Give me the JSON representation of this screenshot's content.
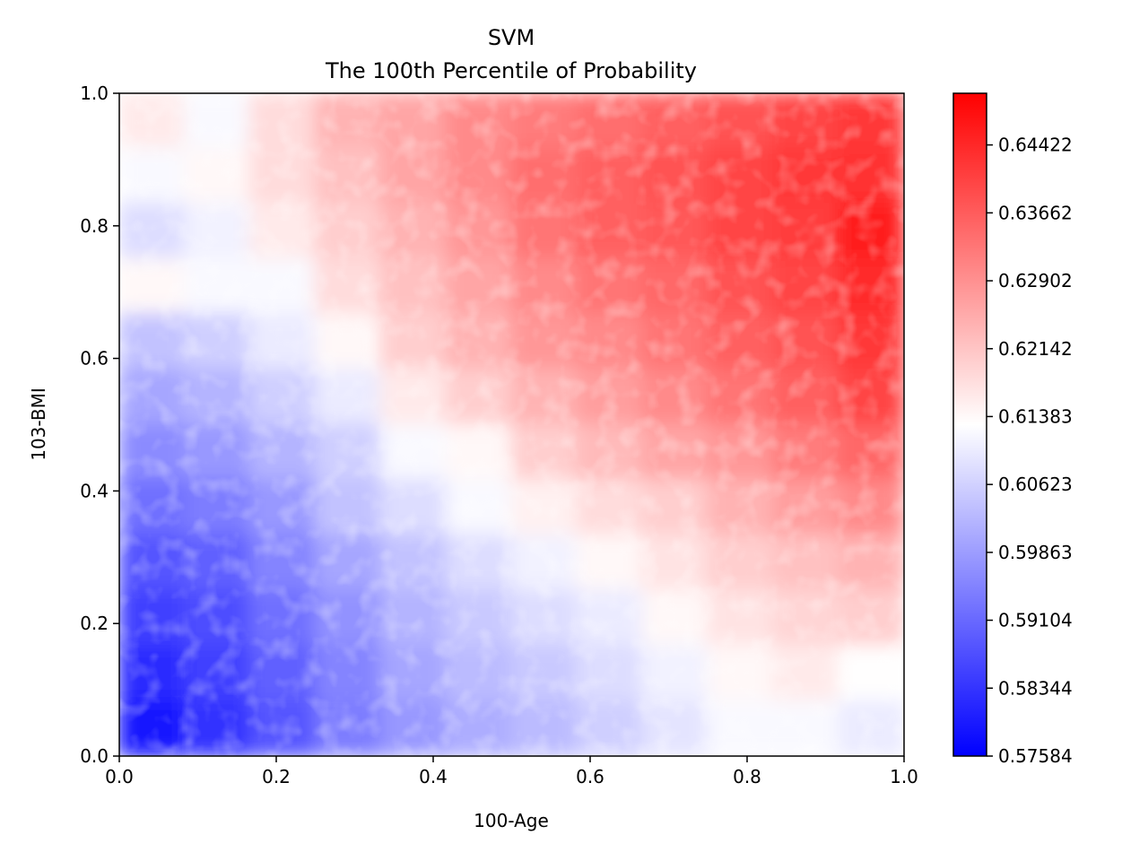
{
  "chart_data": {
    "type": "heatmap",
    "title": "SVM",
    "subtitle": "The 100th Percentile of Probability",
    "xlabel": "100-Age",
    "ylabel": "103-BMI",
    "xlim": [
      0.0,
      1.0
    ],
    "ylim": [
      0.0,
      1.0
    ],
    "x_ticks": [
      "0.0",
      "0.2",
      "0.4",
      "0.6",
      "0.8",
      "1.0"
    ],
    "y_ticks": [
      "0.0",
      "0.2",
      "0.4",
      "0.6",
      "0.8",
      "1.0"
    ],
    "grid": false,
    "colormap": "bwr",
    "colors": {
      "low": "#0000ff",
      "mid": "#ffffff",
      "high": "#ff0000"
    },
    "colorbar": {
      "min": 0.57584,
      "max": 0.65,
      "ticks": [
        "0.57584",
        "0.58344",
        "0.59104",
        "0.59863",
        "0.60623",
        "0.61383",
        "0.62142",
        "0.62902",
        "0.63662",
        "0.64422"
      ],
      "tick_values": [
        0.57584,
        0.58344,
        0.59104,
        0.59863,
        0.60623,
        0.61383,
        0.62142,
        0.62902,
        0.63662,
        0.64422
      ]
    },
    "grid_values": [
      [
        0.616,
        0.612,
        0.618,
        0.624,
        0.626,
        0.63,
        0.632,
        0.634,
        0.636,
        0.638,
        0.64,
        0.642
      ],
      [
        0.612,
        0.614,
        0.618,
        0.622,
        0.626,
        0.63,
        0.634,
        0.636,
        0.638,
        0.64,
        0.642,
        0.643
      ],
      [
        0.608,
        0.611,
        0.616,
        0.62,
        0.624,
        0.628,
        0.633,
        0.636,
        0.637,
        0.64,
        0.641,
        0.646
      ],
      [
        0.614,
        0.612,
        0.612,
        0.618,
        0.622,
        0.626,
        0.63,
        0.633,
        0.635,
        0.638,
        0.64,
        0.644
      ],
      [
        0.604,
        0.606,
        0.61,
        0.614,
        0.62,
        0.624,
        0.628,
        0.63,
        0.633,
        0.636,
        0.638,
        0.642
      ],
      [
        0.6,
        0.602,
        0.606,
        0.61,
        0.616,
        0.62,
        0.624,
        0.627,
        0.63,
        0.633,
        0.636,
        0.64
      ],
      [
        0.596,
        0.598,
        0.602,
        0.606,
        0.612,
        0.614,
        0.62,
        0.623,
        0.626,
        0.628,
        0.632,
        0.635
      ],
      [
        0.592,
        0.594,
        0.598,
        0.604,
        0.608,
        0.612,
        0.615,
        0.618,
        0.62,
        0.624,
        0.627,
        0.63
      ],
      [
        0.588,
        0.59,
        0.595,
        0.6,
        0.604,
        0.608,
        0.611,
        0.614,
        0.617,
        0.62,
        0.622,
        0.624
      ],
      [
        0.585,
        0.587,
        0.592,
        0.597,
        0.602,
        0.605,
        0.608,
        0.61,
        0.614,
        0.617,
        0.619,
        0.62
      ],
      [
        0.582,
        0.585,
        0.59,
        0.595,
        0.6,
        0.603,
        0.605,
        0.608,
        0.611,
        0.614,
        0.616,
        0.613
      ],
      [
        0.579,
        0.583,
        0.588,
        0.594,
        0.598,
        0.601,
        0.603,
        0.606,
        0.609,
        0.612,
        0.612,
        0.61
      ]
    ]
  }
}
